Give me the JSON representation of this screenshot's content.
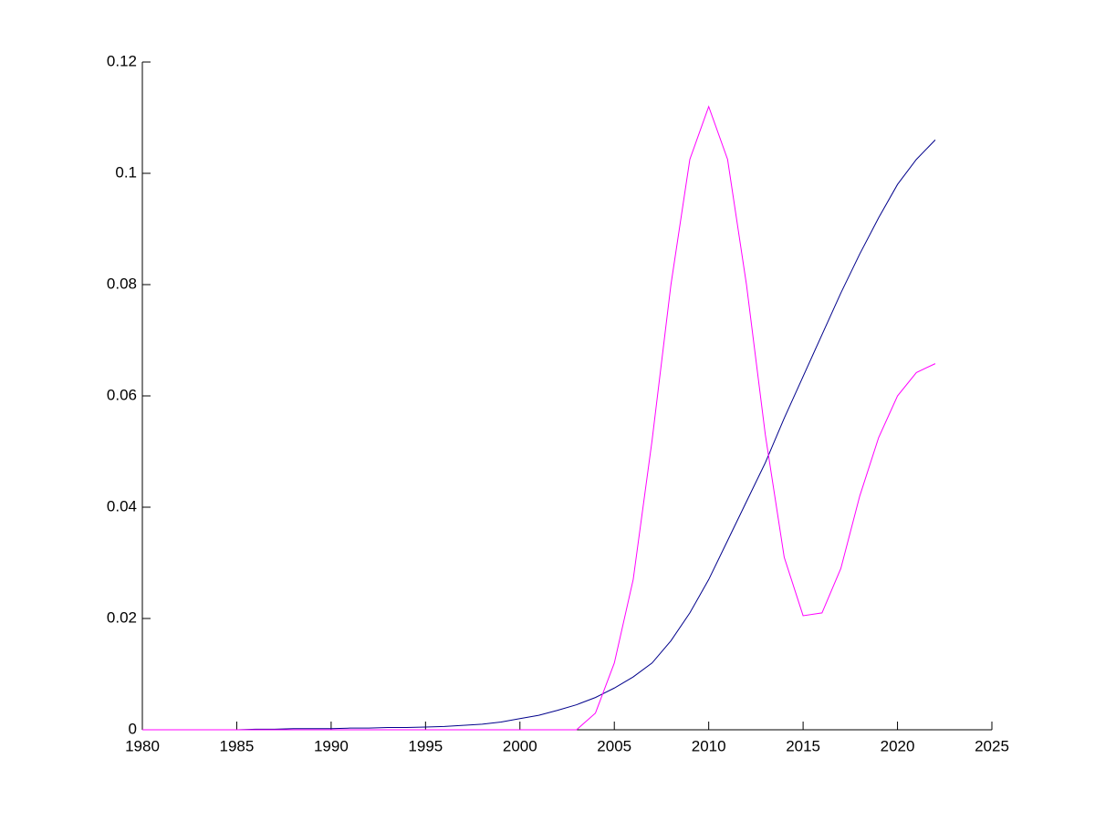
{
  "chart_data": {
    "type": "line",
    "x": [
      1980,
      1981,
      1982,
      1983,
      1984,
      1985,
      1986,
      1987,
      1988,
      1989,
      1990,
      1991,
      1992,
      1993,
      1994,
      1995,
      1996,
      1997,
      1998,
      1999,
      2000,
      2001,
      2002,
      2003,
      2004,
      2005,
      2006,
      2007,
      2008,
      2009,
      2010,
      2011,
      2012,
      2013,
      2014,
      2015,
      2016,
      2017,
      2018,
      2019,
      2020,
      2021,
      2022
    ],
    "series": [
      {
        "color": "#00008b",
        "values": [
          0,
          0,
          0,
          0,
          0,
          0,
          0.0001,
          0.0001,
          0.0002,
          0.0002,
          0.0002,
          0.0003,
          0.0003,
          0.0004,
          0.0004,
          0.0005,
          0.0006,
          0.0008,
          0.001,
          0.0014,
          0.002,
          0.0026,
          0.0035,
          0.0045,
          0.0058,
          0.0075,
          0.0095,
          0.012,
          0.016,
          0.021,
          0.027,
          0.034,
          0.041,
          0.048,
          0.056,
          0.0635,
          0.071,
          0.0785,
          0.0855,
          0.092,
          0.098,
          0.1025,
          0.106
        ]
      },
      {
        "color": "#ff00ff",
        "values": [
          0,
          0,
          0,
          0,
          0,
          0,
          0,
          0,
          0,
          0,
          0,
          0,
          0,
          0,
          0,
          0,
          0,
          0,
          0,
          0,
          0,
          0,
          0,
          0,
          0.003,
          0.012,
          0.027,
          0.052,
          0.08,
          0.1025,
          0.112,
          0.1025,
          0.08,
          0.053,
          0.031,
          0.0205,
          0.021,
          0.029,
          0.042,
          0.0525,
          0.06,
          0.0642,
          0.0658
        ]
      }
    ],
    "xlim": [
      1980,
      2025
    ],
    "xticks": [
      1980,
      1985,
      1990,
      1995,
      2000,
      2005,
      2010,
      2015,
      2020,
      2025
    ],
    "ylim": [
      0,
      0.12
    ],
    "yticks": [
      0,
      0.02,
      0.04,
      0.06,
      0.08,
      0.1,
      0.12
    ]
  }
}
